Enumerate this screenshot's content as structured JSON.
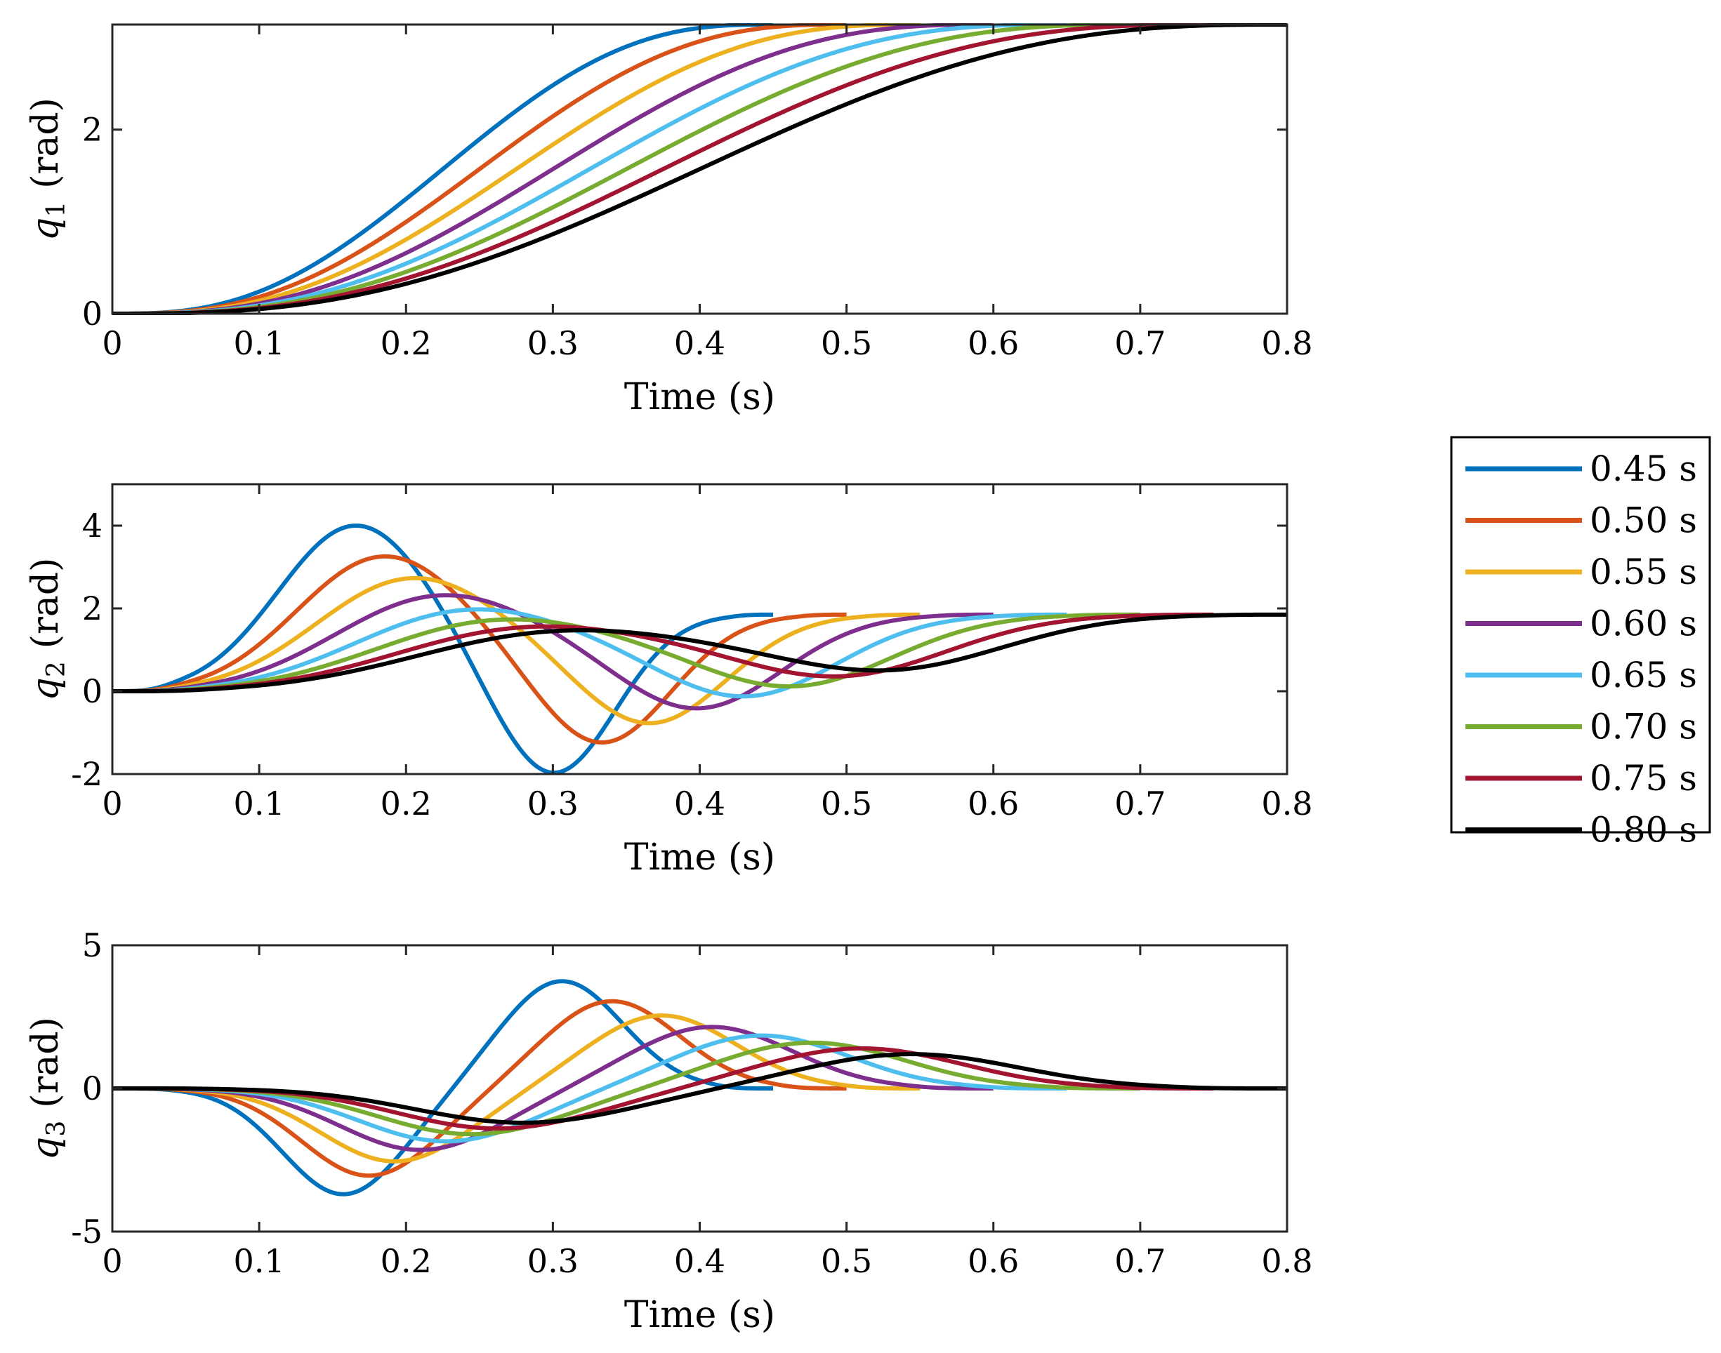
{
  "chart_data": [
    {
      "type": "line",
      "id": "q1",
      "ylabel": "q1 (rad)",
      "ylabel_symbol": "q",
      "ylabel_subscript": "1",
      "ylabel_unit": "(rad)",
      "xlabel": "Time (s)",
      "xlim": [
        0,
        0.8
      ],
      "ylim": [
        0,
        3.14159
      ],
      "xticks": [
        0,
        0.1,
        0.2,
        0.3,
        0.4,
        0.5,
        0.6,
        0.7,
        0.8
      ],
      "xtick_labels": [
        "0",
        "0.1",
        "0.2",
        "0.3",
        "0.4",
        "0.5",
        "0.6",
        "0.7",
        "0.8"
      ],
      "yticks": [
        0,
        2
      ],
      "ytick_labels": [
        "0",
        "2"
      ],
      "grid": false,
      "start_value": 0,
      "end_value": 3.14159
    },
    {
      "type": "line",
      "id": "q2",
      "ylabel": "q2 (rad)",
      "ylabel_symbol": "q",
      "ylabel_subscript": "2",
      "ylabel_unit": "(rad)",
      "xlabel": "Time (s)",
      "xlim": [
        0,
        0.8
      ],
      "ylim": [
        -2,
        5
      ],
      "xticks": [
        0,
        0.1,
        0.2,
        0.3,
        0.4,
        0.5,
        0.6,
        0.7,
        0.8
      ],
      "xtick_labels": [
        "0",
        "0.1",
        "0.2",
        "0.3",
        "0.4",
        "0.5",
        "0.6",
        "0.7",
        "0.8"
      ],
      "yticks": [
        -2,
        0,
        2,
        4
      ],
      "ytick_labels": [
        "-2",
        "0",
        "2",
        "4"
      ],
      "grid": false,
      "start_value": 0,
      "end_value": 1.85
    },
    {
      "type": "line",
      "id": "q3",
      "ylabel": "q3 (rad)",
      "ylabel_symbol": "q",
      "ylabel_subscript": "3",
      "ylabel_unit": "(rad)",
      "xlabel": "Time (s)",
      "xlim": [
        0,
        0.8
      ],
      "ylim": [
        -5,
        5
      ],
      "xticks": [
        0,
        0.1,
        0.2,
        0.3,
        0.4,
        0.5,
        0.6,
        0.7,
        0.8
      ],
      "xtick_labels": [
        "0",
        "0.1",
        "0.2",
        "0.3",
        "0.4",
        "0.5",
        "0.6",
        "0.7",
        "0.8"
      ],
      "yticks": [
        -5,
        0,
        5
      ],
      "ytick_labels": [
        "-5",
        "0",
        "5"
      ],
      "grid": false,
      "start_value": 0,
      "end_value": 0
    }
  ],
  "series": [
    {
      "name": "0.45 s",
      "duration": 0.45,
      "color": "#0072BD",
      "q2_peak": 4.0,
      "q2_trough": -2.05,
      "q3_trough": -3.7,
      "q3_peak": 3.75
    },
    {
      "name": "0.50 s",
      "duration": 0.5,
      "color": "#D95319",
      "q2_peak": 3.25,
      "q2_trough": -1.3,
      "q3_trough": -3.05,
      "q3_peak": 3.05
    },
    {
      "name": "0.55 s",
      "duration": 0.55,
      "color": "#EDB120",
      "q2_peak": 2.72,
      "q2_trough": -0.82,
      "q3_trough": -2.55,
      "q3_peak": 2.55
    },
    {
      "name": "0.60 s",
      "duration": 0.6,
      "color": "#7E2F8E",
      "q2_peak": 2.3,
      "q2_trough": -0.45,
      "q3_trough": -2.15,
      "q3_peak": 2.15
    },
    {
      "name": "0.65 s",
      "duration": 0.65,
      "color": "#4DBEEE",
      "q2_peak": 1.95,
      "q2_trough": -0.15,
      "q3_trough": -1.85,
      "q3_peak": 1.85
    },
    {
      "name": "0.70 s",
      "duration": 0.7,
      "color": "#77AC30",
      "q2_peak": 1.7,
      "q2_trough": 0.1,
      "q3_trough": -1.6,
      "q3_peak": 1.6
    },
    {
      "name": "0.75 s",
      "duration": 0.75,
      "color": "#A2142F",
      "q2_peak": 1.52,
      "q2_trough": 0.35,
      "q3_trough": -1.4,
      "q3_peak": 1.4
    },
    {
      "name": "0.80 s",
      "duration": 0.8,
      "color": "#000000",
      "q2_peak": 1.42,
      "q2_trough": 0.5,
      "q3_trough": -1.2,
      "q3_peak": 1.2
    }
  ],
  "legend": {
    "placement": "right",
    "entries": [
      "0.45 s",
      "0.50 s",
      "0.55 s",
      "0.60 s",
      "0.65 s",
      "0.70 s",
      "0.75 s",
      "0.80 s"
    ]
  }
}
